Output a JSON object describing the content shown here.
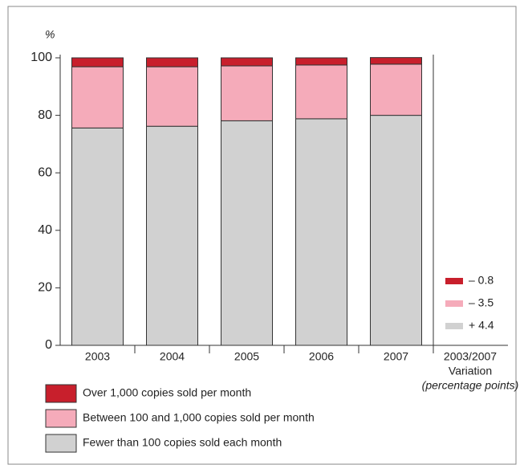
{
  "chart_data": {
    "type": "stacked_bar",
    "y_label": "%",
    "categories": [
      "2003",
      "2004",
      "2005",
      "2006",
      "2007"
    ],
    "extra_category": {
      "label": "2003/2007",
      "sublabel": "Variation",
      "note": "(percentage points)"
    },
    "series": [
      {
        "name": "Fewer than 100 copies sold each month",
        "color": "#d1d1d1",
        "values": [
          75.6,
          76.2,
          78.1,
          78.8,
          80.0
        ],
        "variation": 4.4,
        "variation_label": "+ 4.4"
      },
      {
        "name": "Between 100 and 1,000 copies sold per month",
        "color": "#f5abba",
        "values": [
          21.3,
          20.7,
          19.1,
          18.7,
          17.8
        ],
        "variation": -3.5,
        "variation_label": "– 3.5"
      },
      {
        "name": "Over 1,000 copies sold per month",
        "color": "#c81f2c",
        "values": [
          3.1,
          3.1,
          2.8,
          2.5,
          2.3
        ],
        "variation": -0.8,
        "variation_label": "– 0.8"
      }
    ],
    "ylim": [
      0,
      100
    ],
    "yticks": [
      0,
      20,
      40,
      60,
      80,
      100
    ]
  }
}
